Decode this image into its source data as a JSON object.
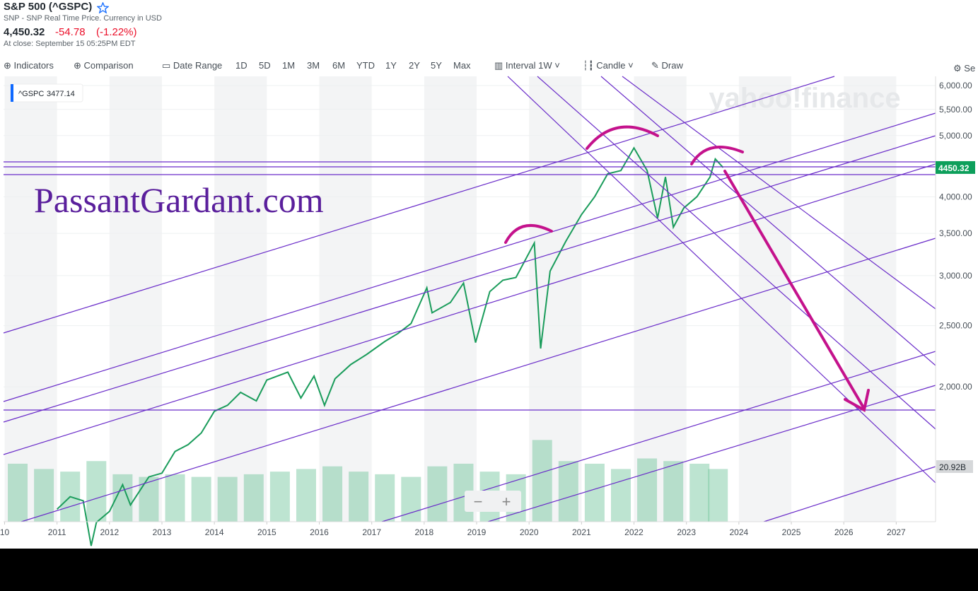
{
  "header": {
    "title": "S&P 500 (^GSPC)",
    "subtitle": "SNP - SNP Real Time Price. Currency in USD",
    "price": "4,450.32",
    "change": "-54.78",
    "change_pct": "(-1.22%)",
    "close_note": "At close: September 15 05:25PM EDT"
  },
  "toolbar": {
    "indicators": "Indicators",
    "comparison": "Comparison",
    "date_range": "Date Range",
    "ranges": [
      "1D",
      "5D",
      "1M",
      "3M",
      "6M",
      "YTD",
      "1Y",
      "2Y",
      "5Y",
      "Max"
    ],
    "interval": "Interval",
    "interval_value": "1W",
    "chart_type": "Candle",
    "draw": "Draw",
    "settings": "Se"
  },
  "chart_data": {
    "type": "line",
    "legend_label": "^GSPC",
    "legend_value": 3477.14,
    "watermark": "yahoo!finance",
    "annotation": "PassantGardant.com",
    "x": [
      2011.0,
      2011.25,
      2011.5,
      2011.65,
      2011.75,
      2012.0,
      2012.25,
      2012.4,
      2012.75,
      2013.0,
      2013.25,
      2013.5,
      2013.75,
      2014.0,
      2014.25,
      2014.5,
      2014.8,
      2015.0,
      2015.4,
      2015.65,
      2015.9,
      2016.1,
      2016.3,
      2016.6,
      2016.9,
      2017.25,
      2017.5,
      2017.75,
      2018.05,
      2018.15,
      2018.5,
      2018.75,
      2018.98,
      2019.25,
      2019.5,
      2019.75,
      2020.1,
      2020.22,
      2020.4,
      2020.7,
      2021.0,
      2021.25,
      2021.5,
      2021.75,
      2022.0,
      2022.25,
      2022.45,
      2022.6,
      2022.75,
      2022.95,
      2023.2,
      2023.45,
      2023.55,
      2023.7
    ],
    "series": [
      {
        "name": "^GSPC",
        "color": "#1a9c5b",
        "values": [
          1280,
          1340,
          1320,
          1120,
          1220,
          1270,
          1400,
          1300,
          1440,
          1460,
          1580,
          1620,
          1690,
          1830,
          1870,
          1960,
          1900,
          2050,
          2110,
          1920,
          2080,
          1870,
          2060,
          2170,
          2250,
          2360,
          2430,
          2520,
          2870,
          2620,
          2720,
          2920,
          2350,
          2830,
          2950,
          2980,
          3380,
          2300,
          3050,
          3400,
          3750,
          4000,
          4350,
          4400,
          4780,
          4400,
          3700,
          4300,
          3580,
          3840,
          4000,
          4300,
          4590,
          4450
        ]
      }
    ],
    "last_value": 4450.32,
    "volume": {
      "color": "#6cc49a",
      "x": [
        2010.25,
        2010.75,
        2011.25,
        2011.75,
        2012.25,
        2012.75,
        2013.25,
        2013.75,
        2014.25,
        2014.75,
        2015.25,
        2015.75,
        2016.25,
        2016.75,
        2017.25,
        2017.75,
        2018.25,
        2018.75,
        2019.25,
        2019.75,
        2020.25,
        2020.75,
        2021.25,
        2021.75,
        2022.25,
        2022.75,
        2023.25,
        2023.6
      ],
      "values": [
        22,
        20,
        19,
        23,
        18,
        17,
        18,
        17,
        17,
        18,
        19,
        20,
        21,
        19,
        18,
        17,
        21,
        22,
        19,
        18,
        31,
        23,
        22,
        20,
        24,
        23,
        22,
        20
      ],
      "ylim": [
        0,
        37
      ],
      "ticks": [
        {
          "value": 20.92,
          "label": "20.92B"
        }
      ]
    },
    "xlim": [
      2009.98,
      2027.75
    ],
    "xticks": [
      {
        "value": 2010,
        "label": "10"
      },
      2011,
      2012,
      2013,
      2014,
      2015,
      2016,
      2017,
      2018,
      2019,
      2020,
      2021,
      2022,
      2023,
      2024,
      2025,
      2026,
      2027
    ],
    "ylim": [
      1223,
      6205
    ],
    "log_scale": true,
    "yticks": [
      {
        "value": 2000,
        "label": "2,000.00"
      },
      {
        "value": 2500,
        "label": "2,500.00"
      },
      {
        "value": 3000,
        "label": "3,000.00"
      },
      {
        "value": 3500,
        "label": "3,500.00"
      },
      {
        "value": 4000,
        "label": "4,000.00"
      },
      {
        "value": 5000,
        "label": "5,000.00"
      },
      {
        "value": 5500,
        "label": "5,500.00"
      },
      {
        "value": 6000,
        "label": "6,000.00"
      }
    ]
  }
}
